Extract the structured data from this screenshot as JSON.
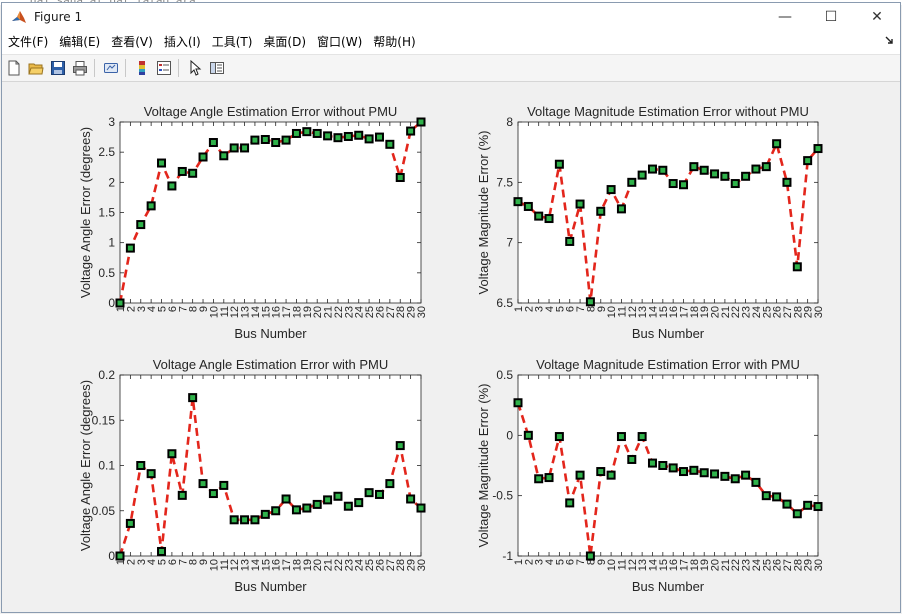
{
  "window": {
    "title": "Figure 1",
    "controls": {
      "minimize": "—",
      "maximize": "☐",
      "close": "✕"
    }
  },
  "background_text": "dai sana al dat fatao ara",
  "menubar": {
    "items": [
      "文件(F)",
      "编辑(E)",
      "查看(V)",
      "插入(I)",
      "工具(T)",
      "桌面(D)",
      "窗口(W)",
      "帮助(H)"
    ],
    "dock_icon": "dock-arrow-icon"
  },
  "toolbar": {
    "buttons": [
      "new-figure-icon",
      "open-file-icon",
      "save-icon",
      "print-icon",
      "link-icon",
      "colorbar-icon",
      "legend-icon",
      "pointer-icon",
      "property-inspector-icon"
    ]
  },
  "chart_data": [
    {
      "type": "line",
      "title": "Voltage Angle Estimation Error without PMU",
      "xlabel": "Bus Number",
      "ylabel": "Voltage Angle Error (degrees)",
      "xlim": [
        1,
        30
      ],
      "ylim": [
        0,
        3
      ],
      "yticks": [
        "0",
        "0.5",
        "1",
        "1.5",
        "2",
        "2.5",
        "3"
      ],
      "x": [
        1,
        2,
        3,
        4,
        5,
        6,
        7,
        8,
        9,
        10,
        11,
        12,
        13,
        14,
        15,
        16,
        17,
        18,
        19,
        20,
        21,
        22,
        23,
        24,
        25,
        26,
        27,
        28,
        29,
        30
      ],
      "values": [
        0,
        0.91,
        1.3,
        1.61,
        2.32,
        1.94,
        2.18,
        2.15,
        2.42,
        2.66,
        2.44,
        2.57,
        2.57,
        2.7,
        2.71,
        2.66,
        2.7,
        2.81,
        2.84,
        2.81,
        2.77,
        2.74,
        2.76,
        2.78,
        2.72,
        2.75,
        2.63,
        2.08,
        2.85,
        3.0
      ],
      "line_color": "#e3261c",
      "marker_edge": "#000000",
      "marker_face": "#2fb24a"
    },
    {
      "type": "line",
      "title": "Voltage Magnitude Estimation Error without PMU",
      "xlabel": "Bus Number",
      "ylabel": "Voltage Magnitude Error (%)",
      "xlim": [
        1,
        30
      ],
      "ylim": [
        6.5,
        8
      ],
      "yticks": [
        "6.5",
        "7",
        "7.5",
        "8"
      ],
      "x": [
        1,
        2,
        3,
        4,
        5,
        6,
        7,
        8,
        9,
        10,
        11,
        12,
        13,
        14,
        15,
        16,
        17,
        18,
        19,
        20,
        21,
        22,
        23,
        24,
        25,
        26,
        27,
        28,
        29,
        30
      ],
      "values": [
        7.34,
        7.3,
        7.22,
        7.2,
        7.65,
        7.01,
        7.32,
        6.51,
        7.26,
        7.44,
        7.28,
        7.5,
        7.56,
        7.61,
        7.6,
        7.49,
        7.48,
        7.63,
        7.6,
        7.57,
        7.55,
        7.49,
        7.55,
        7.61,
        7.63,
        7.82,
        7.5,
        6.8,
        7.68,
        7.78
      ],
      "line_color": "#e3261c",
      "marker_edge": "#000000",
      "marker_face": "#2fb24a"
    },
    {
      "type": "line",
      "title": "Voltage Angle Estimation Error with PMU",
      "xlabel": "Bus Number",
      "ylabel": "Voltage Angle Error (degrees)",
      "xlim": [
        1,
        30
      ],
      "ylim": [
        0,
        0.2
      ],
      "yticks": [
        "0",
        "0.05",
        "0.1",
        "0.15",
        "0.2"
      ],
      "x": [
        1,
        2,
        3,
        4,
        5,
        6,
        7,
        8,
        9,
        10,
        11,
        12,
        13,
        14,
        15,
        16,
        17,
        18,
        19,
        20,
        21,
        22,
        23,
        24,
        25,
        26,
        27,
        28,
        29,
        30
      ],
      "values": [
        0,
        0.036,
        0.1,
        0.091,
        0.005,
        0.113,
        0.067,
        0.175,
        0.08,
        0.069,
        0.078,
        0.04,
        0.04,
        0.04,
        0.046,
        0.05,
        0.063,
        0.051,
        0.053,
        0.057,
        0.062,
        0.066,
        0.055,
        0.059,
        0.07,
        0.068,
        0.08,
        0.122,
        0.063,
        0.053
      ],
      "line_color": "#e3261c",
      "marker_edge": "#000000",
      "marker_face": "#2fb24a"
    },
    {
      "type": "line",
      "title": "Voltage Magnitude Estimation Error with PMU",
      "xlabel": "Bus Number",
      "ylabel": "Voltage Magnitude Error (%)",
      "xlim": [
        1,
        30
      ],
      "ylim": [
        -1,
        0.5
      ],
      "yticks": [
        "-1",
        "-0.5",
        "0",
        "0.5"
      ],
      "x": [
        1,
        2,
        3,
        4,
        5,
        6,
        7,
        8,
        9,
        10,
        11,
        12,
        13,
        14,
        15,
        16,
        17,
        18,
        19,
        20,
        21,
        22,
        23,
        24,
        25,
        26,
        27,
        28,
        29,
        30
      ],
      "values": [
        0.27,
        0.0,
        -0.36,
        -0.35,
        -0.01,
        -0.56,
        -0.33,
        -1.0,
        -0.3,
        -0.33,
        -0.01,
        -0.2,
        -0.01,
        -0.23,
        -0.25,
        -0.27,
        -0.3,
        -0.29,
        -0.31,
        -0.32,
        -0.34,
        -0.36,
        -0.33,
        -0.39,
        -0.5,
        -0.51,
        -0.57,
        -0.65,
        -0.58,
        -0.59
      ],
      "line_color": "#e3261c",
      "marker_edge": "#000000",
      "marker_face": "#2fb24a"
    }
  ]
}
